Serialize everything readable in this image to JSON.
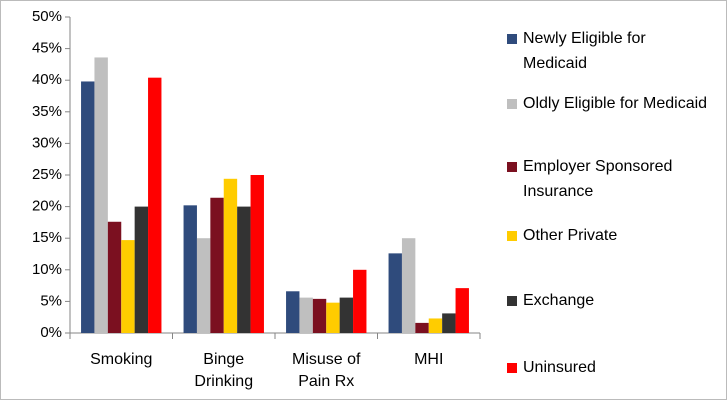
{
  "chart_data": {
    "type": "bar",
    "categories": [
      "Smoking",
      "Binge Drinking",
      "Misuse of Pain Rx",
      "MHI"
    ],
    "series": [
      {
        "name": "Newly Eligible for Medicaid",
        "color": "#2f4b7c",
        "values": [
          39.8,
          20.2,
          6.6,
          12.6
        ]
      },
      {
        "name": "Oldly Eligible for Medicaid",
        "color": "#bfbfbf",
        "values": [
          43.6,
          15.0,
          5.6,
          15.0
        ]
      },
      {
        "name": "Employer Sponsored Insurance",
        "color": "#7b1020",
        "values": [
          17.6,
          21.4,
          5.4,
          1.6
        ]
      },
      {
        "name": "Other Private",
        "color": "#ffcc00",
        "values": [
          14.7,
          24.4,
          4.8,
          2.3
        ]
      },
      {
        "name": "Exchange",
        "color": "#333333",
        "values": [
          20.0,
          20.0,
          5.6,
          3.1
        ]
      },
      {
        "name": "Uninsured",
        "color": "#ff0000",
        "values": [
          40.4,
          25.0,
          10.0,
          7.1
        ]
      }
    ],
    "ylim": [
      0,
      50
    ],
    "yticks": [
      {
        "value": 0,
        "label": "0%"
      },
      {
        "value": 5,
        "label": "5%"
      },
      {
        "value": 10,
        "label": "10%"
      },
      {
        "value": 15,
        "label": "15%"
      },
      {
        "value": 20,
        "label": "20%"
      },
      {
        "value": 25,
        "label": "25%"
      },
      {
        "value": 30,
        "label": "30%"
      },
      {
        "value": 35,
        "label": "35%"
      },
      {
        "value": 40,
        "label": "40%"
      },
      {
        "value": 45,
        "label": "45%"
      },
      {
        "value": 50,
        "label": "50%"
      }
    ],
    "grid": false,
    "legend": "right"
  }
}
